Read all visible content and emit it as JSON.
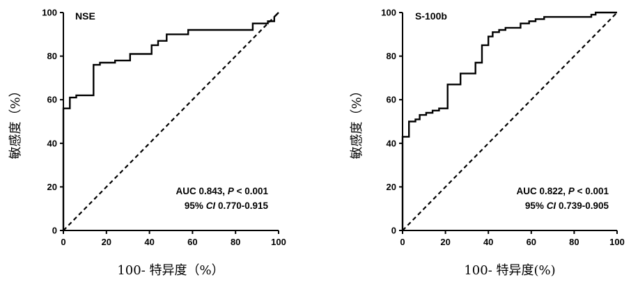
{
  "chart_data": [
    {
      "type": "line",
      "title": "NSE",
      "xlabel": "100- 特异度（%）",
      "ylabel": "敏感度（%）",
      "xlim": [
        0,
        100
      ],
      "ylim": [
        0,
        100
      ],
      "xticks": [
        "0",
        "20",
        "40",
        "60",
        "80",
        "100"
      ],
      "yticks": [
        "0",
        "20",
        "40",
        "60",
        "80",
        "100"
      ],
      "grid": false,
      "annotations": {
        "line1": {
          "prefix": "AUC 0.843, ",
          "italic": "P",
          "suffix": " < 0.001"
        },
        "line2": {
          "prefix": "95% ",
          "italic": "CI",
          "suffix": " 0.770-0.915"
        }
      },
      "series": [
        {
          "style": "solid-step",
          "x": [
            0,
            0,
            3,
            3,
            6,
            6,
            14,
            14,
            17,
            17,
            24,
            24,
            31,
            31,
            41,
            41,
            44,
            44,
            48,
            48,
            58,
            58,
            88,
            88,
            95,
            95,
            98,
            98,
            100
          ],
          "y": [
            0,
            56,
            56,
            61,
            61,
            62,
            62,
            76,
            76,
            77,
            77,
            78,
            78,
            81,
            81,
            85,
            85,
            87,
            87,
            90,
            90,
            92,
            92,
            95,
            95,
            96,
            96,
            98,
            100
          ]
        },
        {
          "style": "dashed-diagonal",
          "x": [
            0,
            100
          ],
          "y": [
            0,
            100
          ]
        }
      ]
    },
    {
      "type": "line",
      "title": "S-100b",
      "xlabel": "100- 特异度(%)",
      "ylabel": "敏感度（%）",
      "xlim": [
        0,
        100
      ],
      "ylim": [
        0,
        100
      ],
      "xticks": [
        "0",
        "20",
        "40",
        "60",
        "80",
        "100"
      ],
      "yticks": [
        "0",
        "20",
        "40",
        "60",
        "80",
        "100"
      ],
      "grid": false,
      "annotations": {
        "line1": {
          "prefix": "AUC 0.822, ",
          "italic": "P",
          "suffix": " < 0.001"
        },
        "line2": {
          "prefix": "95% ",
          "italic": "CI",
          "suffix": " 0.739-0.905"
        }
      },
      "series": [
        {
          "style": "solid-step",
          "x": [
            0,
            0,
            3,
            3,
            6,
            6,
            8,
            8,
            11,
            11,
            14,
            14,
            17,
            17,
            21,
            21,
            27,
            27,
            34,
            34,
            37,
            37,
            40,
            40,
            42,
            42,
            45,
            45,
            48,
            48,
            55,
            55,
            59,
            59,
            62,
            62,
            66,
            66,
            88,
            88,
            90,
            90,
            100
          ],
          "y": [
            0,
            43,
            43,
            50,
            50,
            51,
            51,
            53,
            53,
            54,
            54,
            55,
            55,
            56,
            56,
            67,
            67,
            72,
            72,
            77,
            77,
            85,
            85,
            89,
            89,
            91,
            91,
            92,
            92,
            93,
            93,
            95,
            95,
            96,
            96,
            97,
            97,
            98,
            98,
            99,
            99,
            100,
            100
          ]
        },
        {
          "style": "dashed-diagonal",
          "x": [
            0,
            100
          ],
          "y": [
            0,
            100
          ]
        }
      ]
    }
  ]
}
